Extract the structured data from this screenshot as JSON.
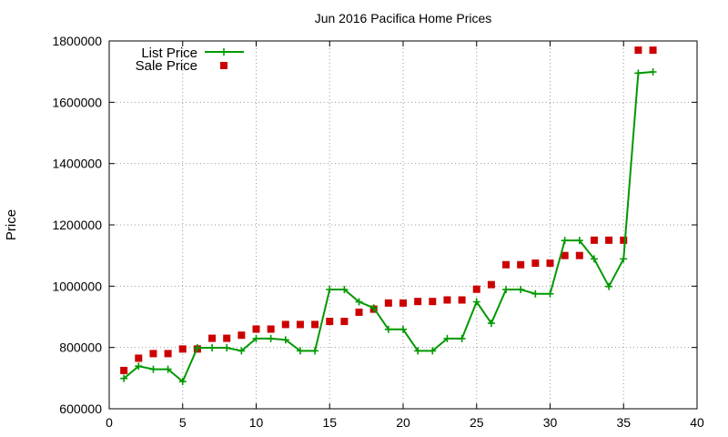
{
  "chart_data": {
    "type": "line",
    "title": "Jun 2016 Pacifica Home Prices",
    "xlabel": "",
    "ylabel": "Price",
    "xlim": [
      0,
      40
    ],
    "ylim": [
      600000,
      1800000
    ],
    "x_ticks": [
      0,
      5,
      10,
      15,
      20,
      25,
      30,
      35,
      40
    ],
    "y_ticks": [
      600000,
      800000,
      1000000,
      1200000,
      1400000,
      1600000,
      1800000
    ],
    "grid": true,
    "legend_position": "top-left",
    "x": [
      1,
      2,
      3,
      4,
      5,
      6,
      7,
      8,
      9,
      10,
      11,
      12,
      13,
      14,
      15,
      16,
      17,
      18,
      19,
      20,
      21,
      22,
      23,
      24,
      25,
      26,
      27,
      28,
      29,
      30,
      31,
      32,
      33,
      34,
      35,
      36,
      37
    ],
    "series": [
      {
        "name": "List Price",
        "style": "line-points",
        "color": "#009900",
        "values": [
          699000,
          739000,
          729000,
          729000,
          689000,
          799000,
          799000,
          799000,
          789000,
          829000,
          829000,
          825000,
          789000,
          789000,
          989000,
          989000,
          949000,
          929000,
          859000,
          859000,
          789000,
          789000,
          829000,
          829000,
          949000,
          879000,
          989000,
          989000,
          975000,
          975000,
          1149000,
          1149000,
          1089000,
          999000,
          1089000,
          1695000,
          1699000
        ]
      },
      {
        "name": "Sale Price",
        "style": "points",
        "color": "#cc0000",
        "values": [
          725000,
          765000,
          780000,
          780000,
          795000,
          795000,
          830000,
          830000,
          840000,
          860000,
          860000,
          875000,
          875000,
          875000,
          885000,
          885000,
          915000,
          925000,
          945000,
          945000,
          950000,
          950000,
          955000,
          955000,
          990000,
          1005000,
          1070000,
          1070000,
          1075000,
          1075000,
          1100000,
          1100000,
          1150000,
          1150000,
          1150000,
          1770000,
          1770000
        ]
      }
    ]
  }
}
